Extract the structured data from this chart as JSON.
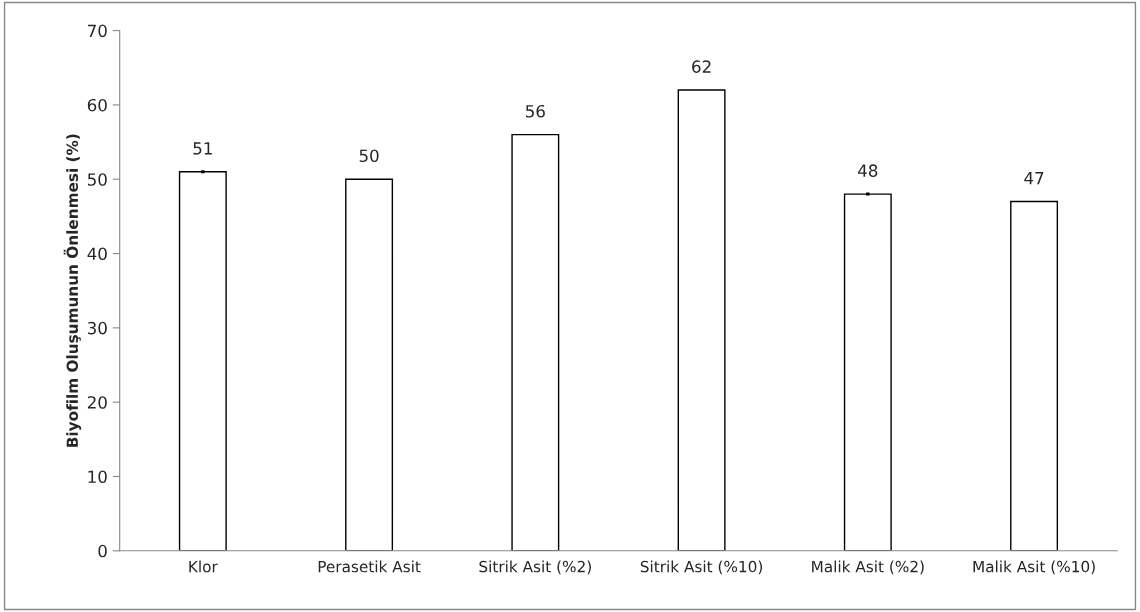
{
  "chart_data": {
    "type": "bar",
    "ylabel": "Biyofilm Oluşumunun Önlenmesi (%)",
    "categories": [
      "Klor",
      "Perasetik Asit",
      "Sitrik Asit (%2)",
      "Sitrik Asit (%10)",
      "Malik Asit (%2)",
      "Malik Asit (%10)"
    ],
    "values": [
      51,
      50,
      56,
      62,
      48,
      47
    ],
    "errors": [
      0.2,
      null,
      null,
      null,
      0.2,
      null
    ],
    "color": "#ffffff",
    "ylim": [
      0,
      70
    ],
    "yticks": [
      0,
      10,
      20,
      30,
      40,
      50,
      60,
      70
    ],
    "data_labels": true,
    "grid": false,
    "legend": false
  }
}
